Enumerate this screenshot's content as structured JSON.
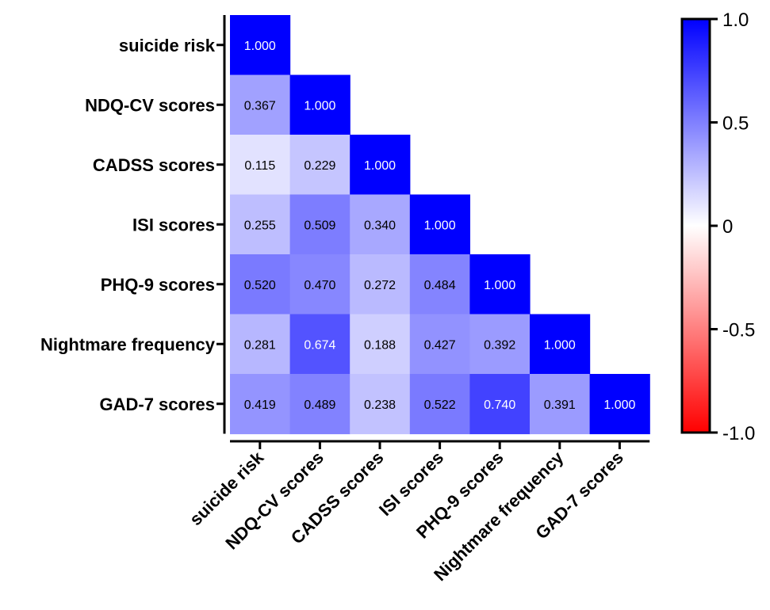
{
  "chart_data": {
    "type": "heatmap",
    "title": "",
    "subtitle": "",
    "xlabel": "",
    "ylabel": "",
    "variables": [
      "suicide risk",
      "NDQ-CV scores",
      "CADSS scores",
      "ISI scores",
      "PHQ-9 scores",
      "Nightmare frequency",
      "GAD-7 scores"
    ],
    "matrix": [
      [
        1.0
      ],
      [
        0.367,
        1.0
      ],
      [
        0.115,
        0.229,
        1.0
      ],
      [
        0.255,
        0.509,
        0.34,
        1.0
      ],
      [
        0.52,
        0.47,
        0.272,
        0.484,
        1.0
      ],
      [
        0.281,
        0.674,
        0.188,
        0.427,
        0.392,
        1.0
      ],
      [
        0.419,
        0.489,
        0.238,
        0.522,
        0.74,
        0.391,
        1.0
      ]
    ],
    "value_labels": [
      [
        "1.000"
      ],
      [
        "0.367",
        "1.000"
      ],
      [
        "0.115",
        "0.229",
        "1.000"
      ],
      [
        "0.255",
        "0.509",
        "0.340",
        "1.000"
      ],
      [
        "0.520",
        "0.470",
        "0.272",
        "0.484",
        "1.000"
      ],
      [
        "0.281",
        "0.674",
        "0.188",
        "0.427",
        "0.392",
        "1.000"
      ],
      [
        "0.419",
        "0.489",
        "0.238",
        "0.522",
        "0.740",
        "0.391",
        "1.000"
      ]
    ],
    "lower_triangle": true,
    "color_scale": {
      "range": [
        -1.0,
        1.0
      ],
      "colors": {
        "min": "#ff0000",
        "mid": "#ffffff",
        "max": "#0000ff"
      },
      "tick_values": [
        1.0,
        0.5,
        0,
        -0.5,
        -1.0
      ],
      "tick_labels": [
        "1.0",
        "0.5",
        "0",
        "-0.5",
        "-1.0"
      ]
    },
    "legend_placement": "right",
    "grid": false
  }
}
